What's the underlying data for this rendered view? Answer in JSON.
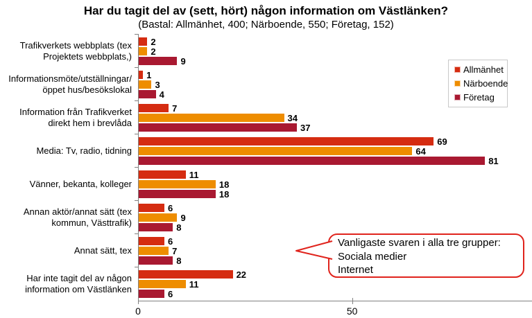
{
  "header": {
    "title": "Har du tagit del av (sett, hört) någon information om Västlänken?",
    "subtitle": "(Bastal: Allmänhet, 400; Närboende, 550; Företag, 152)"
  },
  "chart_data": {
    "type": "bar",
    "orientation": "horizontal",
    "title": "Har du tagit del av (sett, hört) någon information om Västlänken?",
    "subtitle": "(Bastal: Allmänhet, 400; Närboende, 550; Företag, 152)",
    "categories": [
      "Trafikverkets webbplats (tex\nProjektets webbplats,)",
      "Informationsmöte/utställningar/\nöppet hus/besökslokal",
      "Information från Trafikverket\ndirekt hem i brevlåda",
      "Media: Tv, radio, tidning",
      "Vänner, bekanta, kolleger",
      "Annan aktör/annat sätt (tex\nkommun, Västtrafik)",
      "Annat sätt, tex",
      "Har inte tagit del av någon\ninformation om Västlänken"
    ],
    "series": [
      {
        "name": "Allmänhet",
        "color": "#d52c11",
        "values": [
          2,
          1,
          7,
          69,
          11,
          6,
          6,
          22
        ]
      },
      {
        "name": "Närboende",
        "color": "#ee8d00",
        "values": [
          2,
          3,
          34,
          64,
          18,
          9,
          7,
          11
        ]
      },
      {
        "name": "Företag",
        "color": "#a91931",
        "values": [
          9,
          4,
          37,
          81,
          18,
          8,
          8,
          6
        ]
      }
    ],
    "xlim": [
      0,
      92
    ],
    "x_ticks": [
      0,
      50
    ],
    "value_labels": true,
    "grid": false,
    "legend_position": "right"
  },
  "callout": {
    "text": "Vanligaste svaren i alla tre grupper:\nSociala medier\nInternet",
    "border_color": "#e0231c"
  },
  "colors": {
    "axis": "#808080",
    "background": "#ffffff",
    "text": "#000000"
  }
}
